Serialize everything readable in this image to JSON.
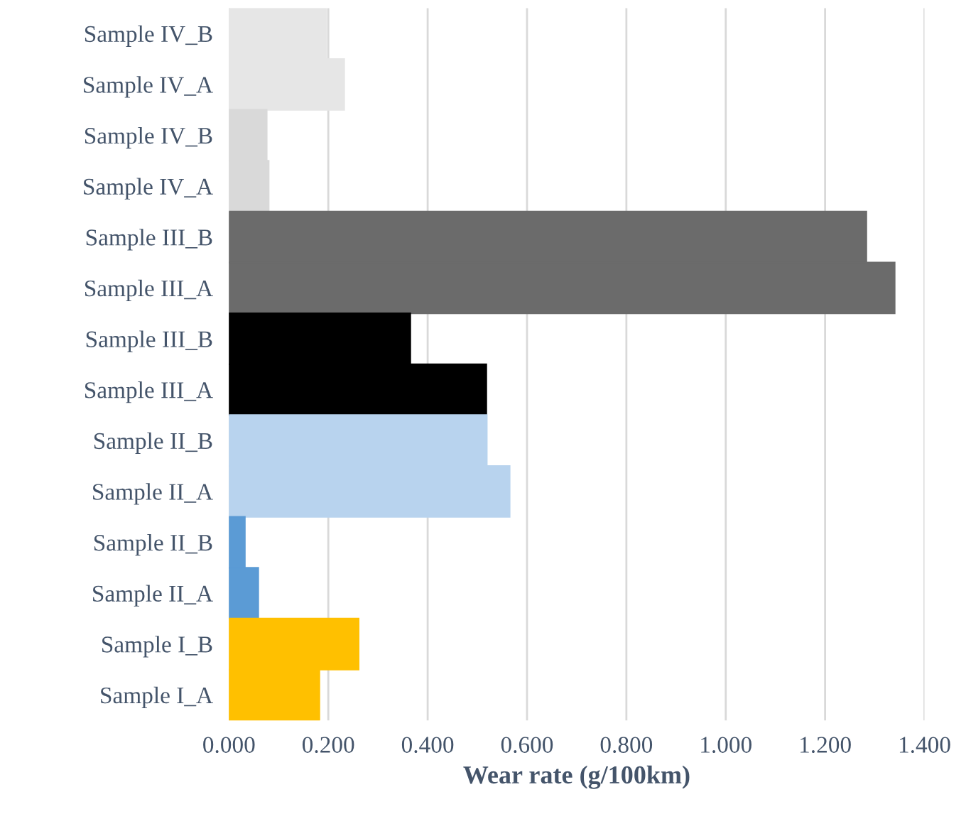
{
  "chart_data": {
    "type": "bar",
    "orientation": "horizontal",
    "xlabel": "Wear rate (g/100km)",
    "categories": [
      "Sample IV_B",
      "Sample IV_A",
      "Sample IV_B",
      "Sample IV_A",
      "Sample III_B",
      "Sample III_A",
      "Sample III_B",
      "Sample III_A",
      "Sample II_B",
      "Sample II_A",
      "Sample II_B",
      "Sample II_A",
      "Sample I_B",
      "Sample I_A"
    ],
    "values": [
      0.196,
      0.232,
      0.076,
      0.08,
      1.283,
      1.34,
      0.365,
      0.518,
      0.519,
      0.565,
      0.032,
      0.059,
      0.261,
      0.182
    ],
    "colors": [
      "#e6e6e6",
      "#e6e6e6",
      "#d9d9d9",
      "#d9d9d9",
      "#6b6b6b",
      "#6b6b6b",
      "#000000",
      "#000000",
      "#b8d3ee",
      "#b8d3ee",
      "#5b9bd5",
      "#5b9bd5",
      "#ffc000",
      "#ffc000"
    ],
    "xlim": [
      0,
      1.4
    ],
    "xticks": [
      {
        "value": 0,
        "label": "0.000"
      },
      {
        "value": 0.2,
        "label": "0.200"
      },
      {
        "value": 0.4,
        "label": "0.400"
      },
      {
        "value": 0.6,
        "label": "0.600"
      },
      {
        "value": 0.8,
        "label": "0.800"
      },
      {
        "value": 1.0,
        "label": "1.000"
      },
      {
        "value": 1.2,
        "label": "1.200"
      },
      {
        "value": 1.4,
        "label": "1.400"
      }
    ],
    "grid": "x",
    "legend": false
  }
}
